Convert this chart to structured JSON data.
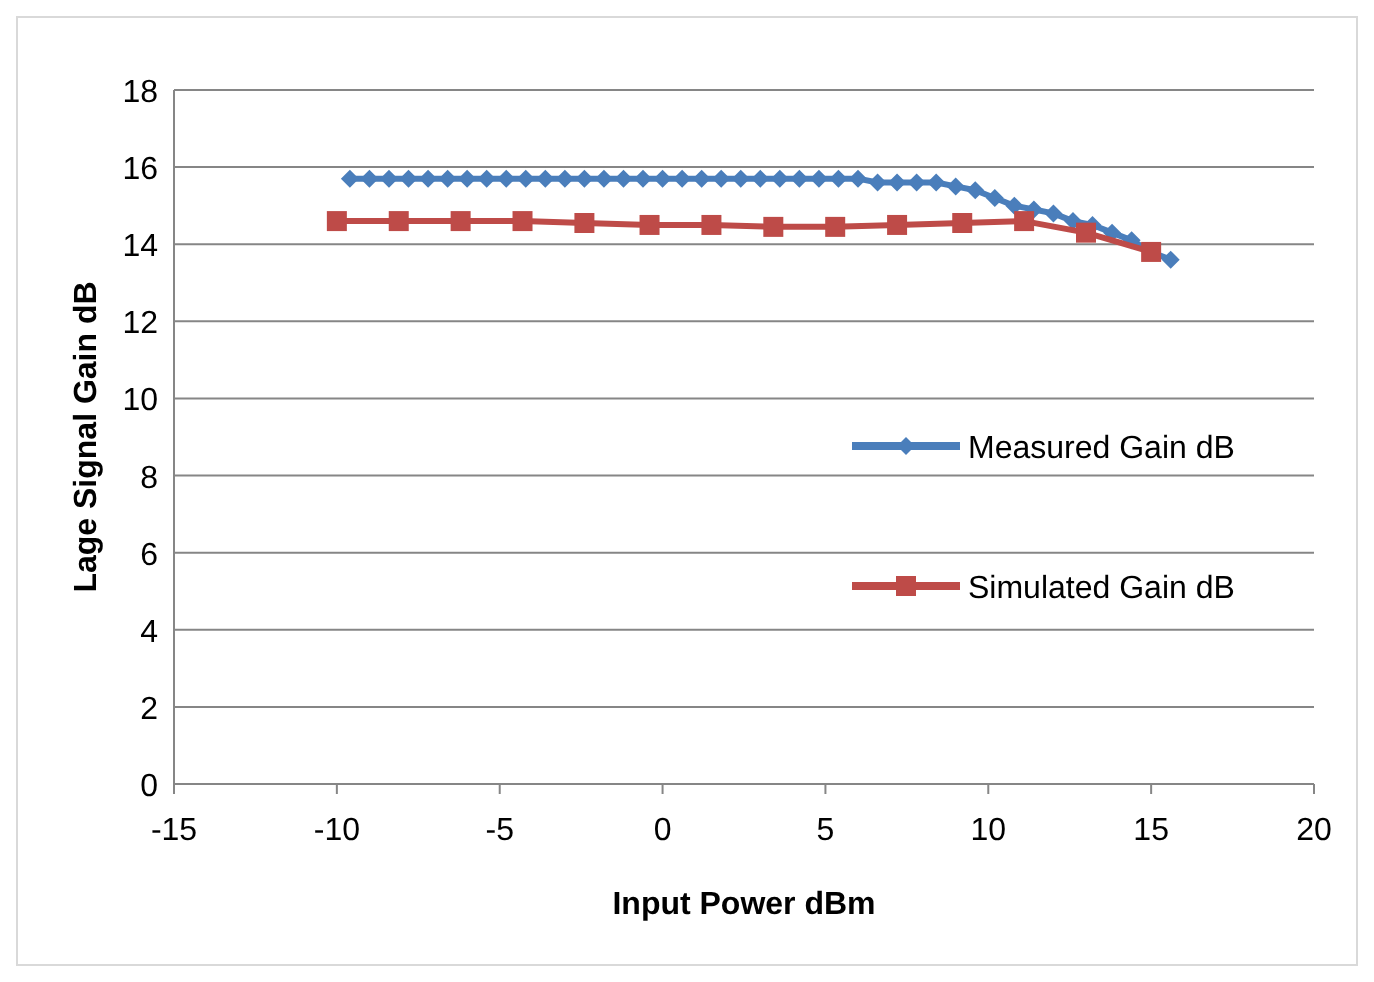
{
  "chart_data": {
    "type": "line",
    "xlabel": "Input Power dBm",
    "ylabel": "Lage Signal Gain dB",
    "xlim": [
      -15,
      20
    ],
    "xticks": [
      -15,
      -10,
      -5,
      0,
      5,
      10,
      15,
      20
    ],
    "ylim": [
      0,
      18
    ],
    "yticks": [
      0,
      2,
      4,
      6,
      8,
      10,
      12,
      14,
      16,
      18
    ],
    "grid": "y",
    "legend": "right",
    "series": [
      {
        "name": "Measured Gain dB",
        "color": "#4a7ebb",
        "marker": "diamond",
        "x": [
          -9.6,
          -9,
          -8.4,
          -7.8,
          -7.2,
          -6.6,
          -6,
          -5.4,
          -4.8,
          -4.2,
          -3.6,
          -3,
          -2.4,
          -1.8,
          -1.2,
          -0.6,
          0,
          0.6,
          1.2,
          1.8,
          2.4,
          3,
          3.6,
          4.2,
          4.8,
          5.4,
          6,
          6.6,
          7.2,
          7.8,
          8.4,
          9,
          9.6,
          10.2,
          10.8,
          11.4,
          12,
          12.6,
          13.2,
          13.8,
          14.4,
          15,
          15.6
        ],
        "values": [
          15.7,
          15.7,
          15.7,
          15.7,
          15.7,
          15.7,
          15.7,
          15.7,
          15.7,
          15.7,
          15.7,
          15.7,
          15.7,
          15.7,
          15.7,
          15.7,
          15.7,
          15.7,
          15.7,
          15.7,
          15.7,
          15.7,
          15.7,
          15.7,
          15.7,
          15.7,
          15.7,
          15.6,
          15.6,
          15.6,
          15.6,
          15.5,
          15.4,
          15.2,
          15.0,
          14.9,
          14.8,
          14.6,
          14.5,
          14.3,
          14.1,
          13.8,
          13.6
        ]
      },
      {
        "name": "Simulated Gain dB",
        "color": "#be4b48",
        "marker": "square",
        "x": [
          -10,
          -8.1,
          -6.2,
          -4.3,
          -2.4,
          -0.4,
          1.5,
          3.4,
          5.3,
          7.2,
          9.2,
          11.1,
          13.0,
          15.0
        ],
        "values": [
          14.6,
          14.6,
          14.6,
          14.6,
          14.55,
          14.5,
          14.5,
          14.45,
          14.45,
          14.5,
          14.55,
          14.6,
          14.3,
          13.8
        ]
      }
    ]
  }
}
